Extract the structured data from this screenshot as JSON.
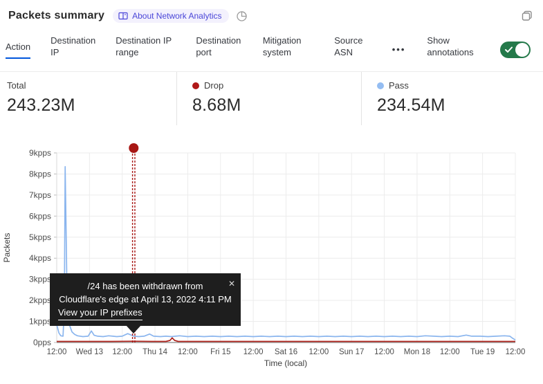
{
  "header": {
    "title": "Packets summary",
    "about_badge_label": "About Network Analytics"
  },
  "tabs": {
    "items": [
      {
        "label": "Action",
        "active": true
      },
      {
        "label": "Destination IP",
        "active": false
      },
      {
        "label": "Destination IP range",
        "active": false
      },
      {
        "label": "Destination port",
        "active": false
      },
      {
        "label": "Mitigation system",
        "active": false
      },
      {
        "label": "Source ASN",
        "active": false
      }
    ],
    "more_label": "•••",
    "show_annotations_label": "Show annotations",
    "annotations_toggle_on": true,
    "active_tab_color": "#0055dc",
    "toggle_color": "#24794a"
  },
  "stats": {
    "items": [
      {
        "label": "Total",
        "value": "243.23M",
        "dot_color": null
      },
      {
        "label": "Drop",
        "value": "8.68M",
        "dot_color": "#b01818"
      },
      {
        "label": "Pass",
        "value": "234.54M",
        "dot_color": "#94bdf2"
      }
    ]
  },
  "chart_data": {
    "type": "line",
    "title": "Packets summary",
    "xlabel": "Time (local)",
    "ylabel": "Packets",
    "ylim": [
      0,
      9
    ],
    "y_unit": "kpps",
    "y_ticks": [
      "0pps",
      "1kpps",
      "2kpps",
      "3kpps",
      "4kpps",
      "5kpps",
      "6kpps",
      "7kpps",
      "8kpps",
      "9kpps"
    ],
    "x_ticks": [
      "12:00",
      "Wed 13",
      "12:00",
      "Thu 14",
      "12:00",
      "Fri 15",
      "12:00",
      "Sat 16",
      "12:00",
      "Sun 17",
      "12:00",
      "Mon 18",
      "12:00",
      "Tue 19",
      "12:00"
    ],
    "x_hours_range": [
      0,
      168
    ],
    "hours_per_tick": 12,
    "grid": true,
    "series": [
      {
        "name": "Pass",
        "color": "#8ab5ee",
        "total": "234.54M",
        "points_h_kpps": [
          [
            0,
            0.85
          ],
          [
            0.8,
            0.45
          ],
          [
            1.5,
            0.32
          ],
          [
            2.3,
            0.3
          ],
          [
            2.8,
            1.6
          ],
          [
            3.1,
            8.35
          ],
          [
            3.5,
            4.8
          ],
          [
            3.9,
            1.1
          ],
          [
            4.6,
            0.85
          ],
          [
            5.6,
            0.5
          ],
          [
            6.6,
            0.38
          ],
          [
            7.6,
            0.32
          ],
          [
            9.6,
            0.28
          ],
          [
            11.5,
            0.3
          ],
          [
            12.7,
            0.55
          ],
          [
            13.7,
            0.34
          ],
          [
            15,
            0.3
          ],
          [
            17,
            0.28
          ],
          [
            19,
            0.32
          ],
          [
            20.5,
            0.3
          ],
          [
            22,
            0.28
          ],
          [
            24,
            0.3
          ],
          [
            26,
            0.42
          ],
          [
            27.5,
            0.34
          ],
          [
            28.2,
            0.3
          ],
          [
            30,
            0.28
          ],
          [
            32,
            0.3
          ],
          [
            34,
            0.4
          ],
          [
            35.5,
            0.3
          ],
          [
            38,
            0.28
          ],
          [
            40,
            0.3
          ],
          [
            42,
            0.28
          ],
          [
            45,
            0.32
          ],
          [
            48,
            0.28
          ],
          [
            51,
            0.3
          ],
          [
            54,
            0.28
          ],
          [
            57,
            0.3
          ],
          [
            60,
            0.28
          ],
          [
            63,
            0.3
          ],
          [
            66,
            0.28
          ],
          [
            69,
            0.3
          ],
          [
            72,
            0.28
          ],
          [
            75,
            0.3
          ],
          [
            78,
            0.28
          ],
          [
            81,
            0.3
          ],
          [
            84,
            0.28
          ],
          [
            87,
            0.3
          ],
          [
            90,
            0.28
          ],
          [
            93,
            0.3
          ],
          [
            96,
            0.28
          ],
          [
            99,
            0.3
          ],
          [
            102,
            0.28
          ],
          [
            105,
            0.3
          ],
          [
            108,
            0.28
          ],
          [
            111,
            0.3
          ],
          [
            114,
            0.28
          ],
          [
            117,
            0.3
          ],
          [
            120,
            0.28
          ],
          [
            123,
            0.3
          ],
          [
            126,
            0.28
          ],
          [
            129,
            0.3
          ],
          [
            132,
            0.28
          ],
          [
            135,
            0.32
          ],
          [
            138,
            0.3
          ],
          [
            141,
            0.28
          ],
          [
            144,
            0.3
          ],
          [
            147,
            0.28
          ],
          [
            150,
            0.35
          ],
          [
            152,
            0.3
          ],
          [
            155,
            0.3
          ],
          [
            158,
            0.28
          ],
          [
            161,
            0.3
          ],
          [
            164,
            0.32
          ],
          [
            166,
            0.3
          ],
          [
            167,
            0.2
          ],
          [
            168,
            0.12
          ]
        ]
      },
      {
        "name": "Drop",
        "color": "#ad211a",
        "total": "8.68M",
        "points_h_kpps": [
          [
            0,
            0.05
          ],
          [
            10,
            0.05
          ],
          [
            20,
            0.05
          ],
          [
            28,
            0.06
          ],
          [
            35,
            0.05
          ],
          [
            40,
            0.05
          ],
          [
            41.5,
            0.1
          ],
          [
            42.3,
            0.22
          ],
          [
            43.2,
            0.1
          ],
          [
            44.5,
            0.05
          ],
          [
            60,
            0.05
          ],
          [
            80,
            0.05
          ],
          [
            100,
            0.05
          ],
          [
            120,
            0.05
          ],
          [
            140,
            0.05
          ],
          [
            160,
            0.05
          ],
          [
            168,
            0.05
          ]
        ]
      }
    ],
    "annotation": {
      "hour": 28.2,
      "marker_color": "#a81714",
      "tooltip": {
        "line1": "/24 has been withdrawn from",
        "line2": "Cloudflare's edge at April 13, 2022 4:11 PM",
        "link": "View your IP prefixes",
        "close_glyph": "✕"
      }
    }
  }
}
